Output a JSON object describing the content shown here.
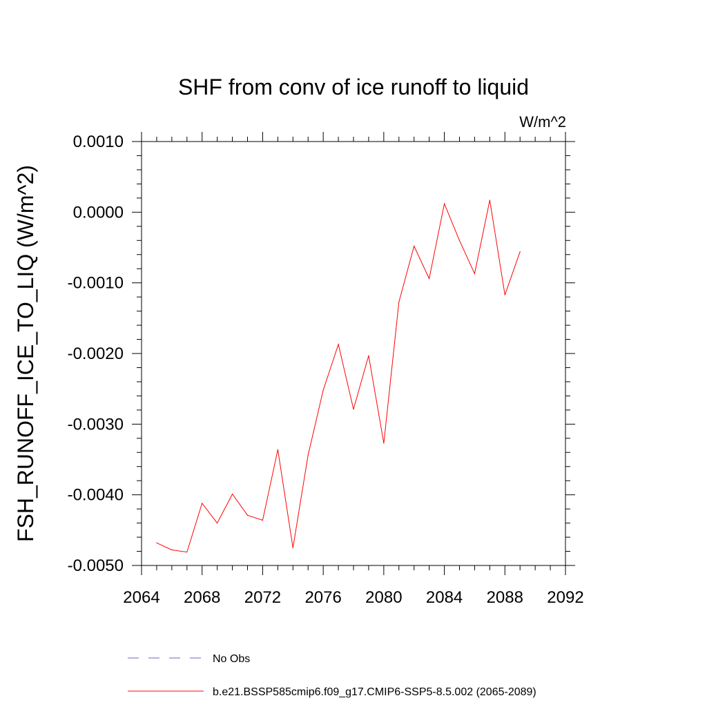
{
  "chart_data": {
    "type": "line",
    "title": "SHF from conv of ice runoff to liquid",
    "units_label": "W/m^2",
    "xlabel": "",
    "ylabel": "FSH_RUNOFF_ICE_TO_LIQ  (W/m^2)",
    "xlim": [
      2064,
      2092
    ],
    "ylim": [
      -0.005,
      0.001
    ],
    "x_ticks": [
      2064,
      2068,
      2072,
      2076,
      2080,
      2084,
      2088,
      2092
    ],
    "x_tick_labels": [
      "2064",
      "2068",
      "2072",
      "2076",
      "2080",
      "2084",
      "2088",
      "2092"
    ],
    "y_ticks": [
      -0.005,
      -0.004,
      -0.003,
      -0.002,
      -0.001,
      0.0,
      0.001
    ],
    "y_tick_labels": [
      "-0.0050",
      "-0.0040",
      "-0.0030",
      "-0.0020",
      "-0.0010",
      "0.0000",
      "0.0010"
    ],
    "series": [
      {
        "name": "b.e21.BSSP585cmip6.f09_g17.CMIP6-SSP5-8.5.002 (2065-2089)",
        "color": "#ff0000",
        "dash": "solid",
        "x": [
          2065,
          2066,
          2067,
          2068,
          2069,
          2070,
          2071,
          2072,
          2073,
          2074,
          2075,
          2076,
          2077,
          2078,
          2079,
          2080,
          2081,
          2082,
          2083,
          2084,
          2085,
          2086,
          2087,
          2088,
          2089
        ],
        "y": [
          -0.00468,
          -0.00478,
          -0.00481,
          -0.00412,
          -0.0044,
          -0.00399,
          -0.00429,
          -0.00436,
          -0.00336,
          -0.00475,
          -0.00344,
          -0.00252,
          -0.00187,
          -0.00279,
          -0.00203,
          -0.00327,
          -0.00127,
          -0.00048,
          -0.00094,
          0.00012,
          -0.0004,
          -0.00087,
          0.00017,
          -0.00117,
          -0.00056
        ]
      }
    ],
    "legend": [
      {
        "label": "No Obs",
        "color": "#6666cc",
        "dash": "dashed"
      },
      {
        "label": "b.e21.BSSP585cmip6.f09_g17.CMIP6-SSP5-8.5.002 (2065-2089)",
        "color": "#ff0000",
        "dash": "solid"
      }
    ]
  }
}
